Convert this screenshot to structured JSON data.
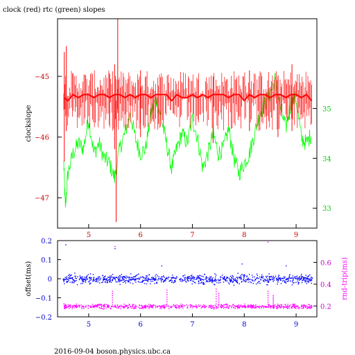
{
  "figure": {
    "title": "clock (red) rtc (green) slopes",
    "footer": "2016-09-04 boson.physics.ubc.ca"
  },
  "chart_data": [
    {
      "id": "slopes",
      "type": "line",
      "title": "clock (red) rtc (green) slopes",
      "ylabel": "clockslope",
      "ylabel_right": "",
      "xlim": [
        4.4,
        9.4
      ],
      "ylim": [
        -47.5,
        -44.05
      ],
      "ylim_right": [
        32.6,
        36.8
      ],
      "xticks": [
        5,
        6,
        7,
        8,
        9
      ],
      "yticks": [
        -45,
        -46,
        -47
      ],
      "yticks_right": [
        35,
        34,
        33
      ],
      "ytick_labels_right": [
        "35",
        "34",
        "33"
      ],
      "colors": {
        "axes": "#000000",
        "ticks_x": "#cc0000",
        "ticks_left": "#cc0000",
        "ticks_right": "#00cc00"
      },
      "series": [
        {
          "axis": "right",
          "color": "#00ff00",
          "x": [
            4.52,
            4.55,
            4.6,
            4.7,
            4.8,
            4.9,
            5.0,
            5.1,
            5.2,
            5.3,
            5.4,
            5.5,
            5.6,
            5.7,
            5.8,
            5.9,
            6.0,
            6.1,
            6.2,
            6.3,
            6.4,
            6.5,
            6.6,
            6.7,
            6.8,
            6.9,
            7.0,
            7.1,
            7.2,
            7.3,
            7.4,
            7.5,
            7.6,
            7.7,
            7.8,
            7.9,
            8.0,
            8.1,
            8.2,
            8.3,
            8.4,
            8.5,
            8.6,
            8.7,
            8.8,
            8.9,
            9.0,
            9.1,
            9.2,
            9.3
          ],
          "y": [
            33.9,
            33.0,
            33.7,
            34.1,
            34.3,
            34.2,
            34.8,
            34.1,
            34.3,
            34.0,
            33.9,
            33.6,
            34.2,
            34.5,
            34.9,
            34.4,
            34.1,
            34.2,
            34.9,
            35.2,
            34.8,
            34.3,
            33.8,
            34.2,
            34.5,
            34.3,
            34.8,
            34.4,
            33.8,
            34.1,
            34.5,
            34.1,
            34.2,
            34.6,
            34.0,
            33.7,
            33.9,
            34.1,
            34.5,
            34.9,
            35.1,
            35.3,
            35.6,
            35.0,
            34.6,
            35.1,
            35.2,
            34.4,
            34.3,
            34.5
          ]
        },
        {
          "axis": "left",
          "color": "#ff0000",
          "x": [
            4.52,
            4.6,
            4.7,
            4.8,
            4.9,
            5.0,
            5.1,
            5.2,
            5.3,
            5.4,
            5.5,
            5.6,
            5.7,
            5.8,
            5.9,
            6.0,
            6.1,
            6.2,
            6.3,
            6.4,
            6.5,
            6.6,
            6.7,
            6.8,
            6.9,
            7.0,
            7.1,
            7.2,
            7.3,
            7.4,
            7.5,
            7.6,
            7.7,
            7.8,
            7.9,
            8.0,
            8.1,
            8.2,
            8.3,
            8.4,
            8.5,
            8.6,
            8.7,
            8.8,
            8.9,
            9.0,
            9.1,
            9.2,
            9.3
          ],
          "y": [
            -45.35,
            -45.4,
            -45.3,
            -45.35,
            -45.3,
            -45.3,
            -45.35,
            -45.3,
            -45.3,
            -45.35,
            -45.3,
            -45.3,
            -45.35,
            -45.3,
            -45.35,
            -45.3,
            -45.3,
            -45.35,
            -45.3,
            -45.3,
            -45.3,
            -45.4,
            -45.3,
            -45.35,
            -45.35,
            -45.3,
            -45.35,
            -45.3,
            -45.35,
            -45.3,
            -45.3,
            -45.3,
            -45.35,
            -45.3,
            -45.3,
            -45.4,
            -45.3,
            -45.35,
            -45.3,
            -45.3,
            -45.35,
            -45.3,
            -45.3,
            -45.35,
            -45.3,
            -45.3,
            -45.35,
            -45.3,
            -45.4
          ],
          "noise_band": [
            -45.9,
            -44.9
          ],
          "spikes": [
            {
              "x": 4.53,
              "low": -46.4,
              "high": -44.6
            },
            {
              "x": 4.57,
              "low": -45.9,
              "high": -44.5
            },
            {
              "x": 5.4,
              "low": -45.8,
              "high": -44.95
            },
            {
              "x": 5.5,
              "low": -46.2,
              "high": -44.8
            },
            {
              "x": 5.53,
              "low": -47.4,
              "high": -45.4
            },
            {
              "x": 5.56,
              "low": -45.6,
              "high": -44.05
            },
            {
              "x": 6.0,
              "low": -46.0,
              "high": -44.9
            },
            {
              "x": 7.4,
              "low": -46.1,
              "high": -45.0
            },
            {
              "x": 8.1,
              "low": -45.9,
              "high": -44.9
            },
            {
              "x": 8.65,
              "low": -46.0,
              "high": -45.0
            },
            {
              "x": 8.92,
              "low": -45.9,
              "high": -44.8
            }
          ]
        }
      ]
    },
    {
      "id": "offset",
      "type": "scatter",
      "ylabel": "offset(ms)",
      "ylabel_right": "rnd-trip(ms)",
      "xlim": [
        4.4,
        9.4
      ],
      "ylim": [
        -0.2,
        0.2
      ],
      "ylim_right": [
        0.1,
        0.8
      ],
      "xticks": [
        5,
        6,
        7,
        8,
        9
      ],
      "yticks": [
        0.2,
        0.1,
        0,
        -0.1,
        -0.2
      ],
      "ytick_labels": [
        "0.2",
        "0.1",
        "0",
        "−0.1",
        "−0.2"
      ],
      "yticks_right": [
        0.6,
        0.4,
        0.2
      ],
      "colors": {
        "axes": "#000000",
        "ticks_x": "#0000cc",
        "ticks_left": "#0000cc",
        "ticks_right": "#cc00cc"
      },
      "series": [
        {
          "axis": "left",
          "color": "#0000ff",
          "x_range": [
            4.5,
            9.3
          ],
          "center": 0.0,
          "spread": 0.035,
          "outliers": [
            {
              "x": 4.55,
              "y": 0.18
            },
            {
              "x": 5.5,
              "y": 0.16
            },
            {
              "x": 6.4,
              "y": 0.07
            },
            {
              "x": 7.95,
              "y": 0.08
            },
            {
              "x": 8.8,
              "y": 0.07
            }
          ]
        },
        {
          "axis": "right",
          "color": "#ff00ff",
          "x_range": [
            4.5,
            9.3
          ],
          "center": 0.2,
          "spread": 0.025,
          "spikes": [
            {
              "x": 5.45,
              "high": 0.34
            },
            {
              "x": 6.5,
              "high": 0.35
            },
            {
              "x": 7.45,
              "high": 0.36
            },
            {
              "x": 7.5,
              "high": 0.32
            },
            {
              "x": 8.45,
              "high": 0.34
            },
            {
              "x": 8.55,
              "high": 0.3
            }
          ],
          "outliers": [
            {
              "x": 5.5,
              "y": 0.75
            },
            {
              "x": 8.45,
              "y": 0.79
            }
          ]
        }
      ]
    }
  ]
}
